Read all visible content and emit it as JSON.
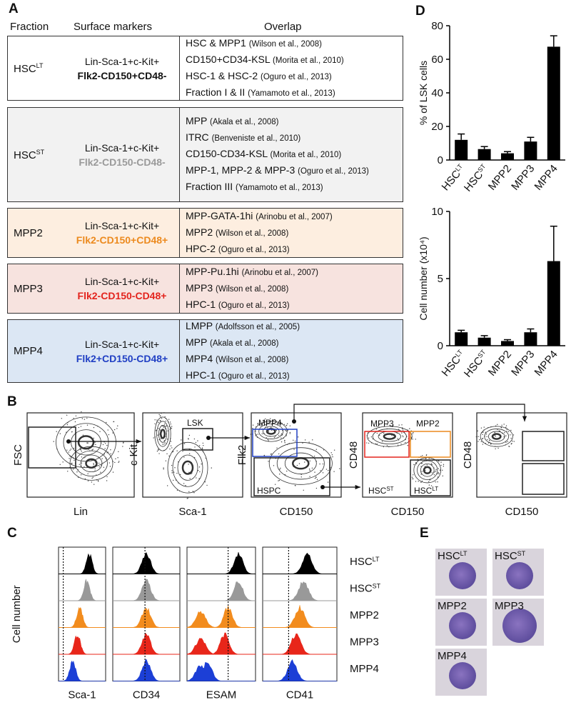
{
  "panel_a": {
    "label": "A",
    "header": [
      "Fraction",
      "Surface markers",
      "Overlap"
    ],
    "rows": [
      {
        "fraction": {
          "text": "HSC",
          "sup": "LT"
        },
        "markers": [
          "Lin-Sca-1+c-Kit+",
          "Flk2-CD150+CD48-"
        ],
        "overlap": [
          {
            "text": "HSC & MPP1",
            "cite": "(Wilson et al., 2008)"
          },
          {
            "text": "CD150+CD34-KSL",
            "cite": "(Morita et al., 2010)"
          },
          {
            "text": "HSC-1 & HSC-2",
            "cite": "(Oguro et al., 2013)"
          },
          {
            "text": "Fraction I & II",
            "cite": "(Yamamoto et al., 2013)"
          }
        ]
      },
      {
        "fraction": {
          "text": "HSC",
          "sup": "ST"
        },
        "markers": [
          "Lin-Sca-1+c-Kit+",
          "Flk2-CD150-CD48-"
        ],
        "overlap": [
          {
            "text": "MPP",
            "cite": "(Akala et al., 2008)"
          },
          {
            "text": "ITRC",
            "cite": "(Benveniste et al., 2010)"
          },
          {
            "text": "CD150-CD34-KSL",
            "cite": "(Morita et al., 2010)"
          },
          {
            "text": "MPP-1, MPP-2 & MPP-3",
            "cite": "(Oguro et al., 2013)"
          },
          {
            "text": "Fraction III",
            "cite": "(Yamamoto et al., 2013)"
          }
        ]
      },
      {
        "fraction": {
          "text": "MPP2"
        },
        "markers": [
          "Lin-Sca-1+c-Kit+",
          "Flk2-CD150+CD48+"
        ],
        "overlap": [
          {
            "text": "MPP-GATA-1hi",
            "cite": "(Arinobu et al., 2007)"
          },
          {
            "text": "MPP2",
            "cite": "(Wilson et al., 2008)"
          },
          {
            "text": "HPC-2",
            "cite": "(Oguro et al., 2013)"
          }
        ]
      },
      {
        "fraction": {
          "text": "MPP3"
        },
        "markers": [
          "Lin-Sca-1+c-Kit+",
          "Flk2-CD150-CD48+"
        ],
        "overlap": [
          {
            "text": "MPP-Pu.1hi",
            "cite": "(Arinobu et al., 2007)"
          },
          {
            "text": "MPP3",
            "cite": "(Wilson et al., 2008)"
          },
          {
            "text": "HPC-1",
            "cite": "(Oguro et al., 2013)"
          }
        ]
      },
      {
        "fraction": {
          "text": "MPP4"
        },
        "markers": [
          "Lin-Sca-1+c-Kit+",
          "Flk2+CD150-CD48+"
        ],
        "overlap": [
          {
            "text": "LMPP",
            "cite": "(Adolfsson et al., 2005)"
          },
          {
            "text": "MPP",
            "cite": "(Akala et al., 2008)"
          },
          {
            "text": "MPP4",
            "cite": "(Wilson et al., 2008)"
          },
          {
            "text": "HPC-1",
            "cite": "(Oguro et al., 2013)"
          }
        ]
      }
    ]
  },
  "panel_b": {
    "label": "B",
    "plots": [
      {
        "x_label": "Lin",
        "y_label": "FSC",
        "gates": []
      },
      {
        "x_label": "Sca-1",
        "y_label": "c-Kit",
        "gates": [
          {
            "text": "LSK"
          }
        ]
      },
      {
        "x_label": "CD150",
        "y_label": "Flk2",
        "gates": [
          {
            "text": "MPP4"
          },
          {
            "text": "HSPC"
          }
        ]
      },
      {
        "x_label": "CD150",
        "y_label": "CD48",
        "gates": [
          {
            "text": "MPP3"
          },
          {
            "text": "MPP2"
          },
          {
            "text": "HSC",
            "sup": "ST"
          },
          {
            "text": "HSC",
            "sup": "LT"
          }
        ]
      },
      {
        "x_label": "CD150",
        "y_label": "CD48",
        "gates": []
      }
    ]
  },
  "panel_c": {
    "label": "C",
    "y_label": "Cell number",
    "markers": [
      "Sca-1",
      "CD34",
      "ESAM",
      "CD41"
    ],
    "populations": [
      {
        "text": "HSC",
        "sup": "LT"
      },
      {
        "text": "HSC",
        "sup": "ST"
      },
      {
        "text": "MPP2"
      },
      {
        "text": "MPP3"
      },
      {
        "text": "MPP4"
      }
    ]
  },
  "panel_d": {
    "label": "D"
  },
  "chart_data": [
    {
      "type": "bar",
      "y_label": "% of LSK cells",
      "categories": [
        "HSC",
        "HSC",
        "MPP2",
        "MPP3",
        "MPP4"
      ],
      "category_superscripts": [
        "LT",
        "ST",
        null,
        null,
        null
      ],
      "values": [
        12,
        6.5,
        4,
        11,
        67.5
      ],
      "errors": [
        3.5,
        1.5,
        1,
        2.5,
        6.5
      ],
      "color": "#000000",
      "ylim": [
        0,
        80
      ],
      "yticks": [
        0,
        20,
        40,
        60,
        80
      ]
    },
    {
      "type": "bar",
      "y_label": "Cell number (x10⁴)",
      "categories": [
        "HSC",
        "HSC",
        "MPP2",
        "MPP3",
        "MPP4"
      ],
      "category_superscripts": [
        "LT",
        "ST",
        null,
        null,
        null
      ],
      "values": [
        1.0,
        0.6,
        0.35,
        1.0,
        6.3
      ],
      "errors": [
        0.15,
        0.15,
        0.1,
        0.25,
        2.6
      ],
      "color": "#000000",
      "ylim": [
        0,
        10
      ],
      "yticks": [
        0,
        5,
        10
      ]
    }
  ],
  "panel_e": {
    "label": "E",
    "cells": [
      {
        "text": "HSC",
        "sup": "LT"
      },
      {
        "text": "HSC",
        "sup": "ST"
      },
      {
        "text": "MPP2"
      },
      {
        "text": "MPP3"
      },
      {
        "text": "MPP4"
      }
    ]
  }
}
